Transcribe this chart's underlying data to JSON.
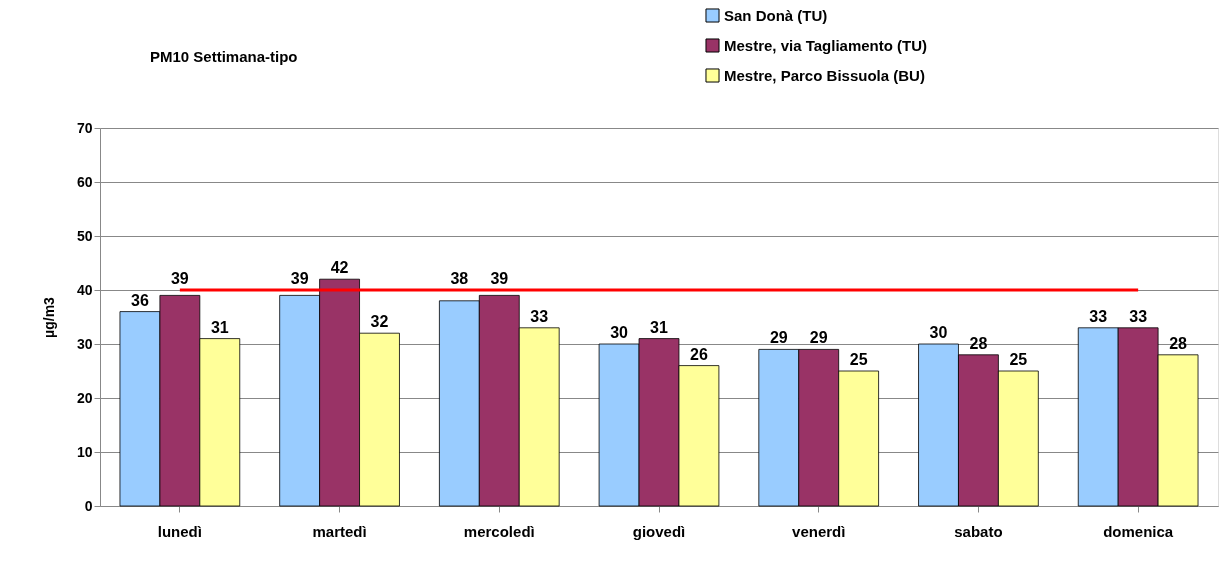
{
  "chart_data": {
    "type": "bar",
    "title": "PM10 Settimana-tipo",
    "ylabel": "µg/m3",
    "categories": [
      "lunedì",
      "martedì",
      "mercoledì",
      "giovedì",
      "venerdì",
      "sabato",
      "domenica"
    ],
    "series": [
      {
        "name": "San Donà (TU)",
        "color": "#99ccff",
        "values": [
          36,
          39,
          38,
          30,
          29,
          30,
          33
        ]
      },
      {
        "name": "Mestre, via Tagliamento (TU)",
        "color": "#993366",
        "values": [
          39,
          42,
          39,
          31,
          29,
          28,
          33
        ]
      },
      {
        "name": "Mestre, Parco Bissuola (BU)",
        "color": "#ffff99",
        "values": [
          31,
          32,
          33,
          26,
          25,
          25,
          28
        ]
      }
    ],
    "ylim": [
      0,
      70
    ],
    "yticks": [
      0,
      10,
      20,
      30,
      40,
      50,
      60,
      70
    ],
    "grid": "y",
    "legend": "top right",
    "data_labels": true,
    "ref_lines": [
      {
        "axis": "y",
        "value": 40,
        "label": null,
        "color": "#ff0000"
      }
    ]
  }
}
